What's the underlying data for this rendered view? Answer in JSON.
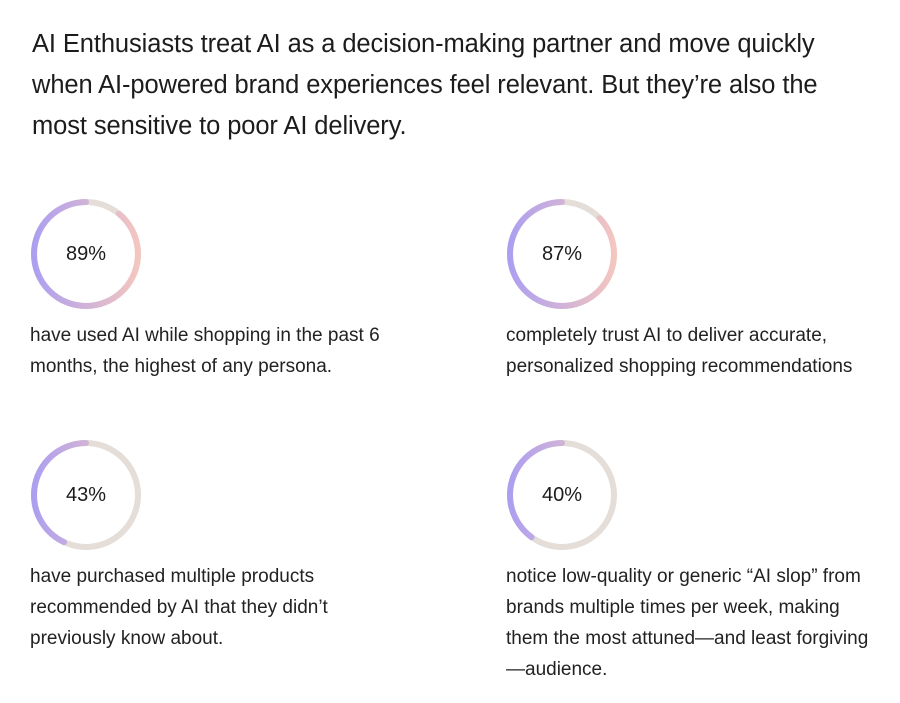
{
  "headline": "AI Enthusiasts treat AI as a decision-making partner and move quickly when AI-powered brand experiences feel relevant. But they’re also the most sensitive to poor AI delivery.",
  "colors": {
    "track": "#e4ddd8",
    "gradient_start": "#f4c6c0",
    "gradient_end": "#ad9ff0"
  },
  "stats": [
    {
      "value": "89%",
      "fraction": 0.89,
      "description": "have used AI while shopping in the past 6 months, the highest of any persona."
    },
    {
      "value": "87%",
      "fraction": 0.87,
      "description": "completely trust AI to deliver accurate, personalized shopping recommendations"
    },
    {
      "value": "43%",
      "fraction": 0.43,
      "description": "have purchased multiple products recommended by AI that they didn’t previously know about."
    },
    {
      "value": "40%",
      "fraction": 0.4,
      "description": "notice low-quality or generic “AI slop” from brands multiple times per week, making them the most attuned—and least forgiving—audience."
    }
  ]
}
